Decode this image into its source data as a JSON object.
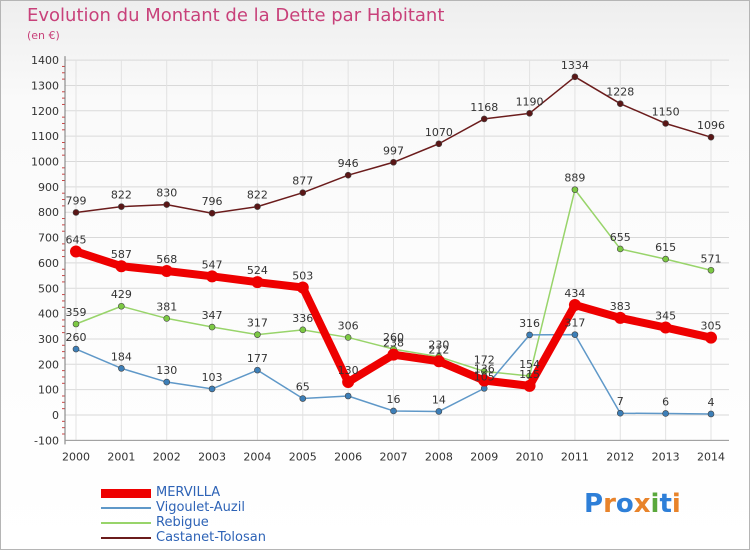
{
  "header": {
    "title": "Evolution du Montant de la Dette par Habitant",
    "subtitle": "(en €)"
  },
  "logo": {
    "text": "Proxiti",
    "letter_colors": [
      "#2e7fd8",
      "#e8832a",
      "#2e7fd8",
      "#e8832a",
      "#5aa83c",
      "#2e7fd8",
      "#e8832a"
    ]
  },
  "chart_data": {
    "type": "line",
    "title": "Evolution du Montant de la Dette par Habitant",
    "ylabel": "(en €)",
    "xlabel": "",
    "ylim": [
      -100,
      1400
    ],
    "yticks": [
      -100,
      0,
      100,
      200,
      300,
      400,
      500,
      600,
      700,
      800,
      900,
      1000,
      1100,
      1200,
      1300,
      1400
    ],
    "grid": true,
    "legend_position": "bottom-left",
    "x": [
      "2000",
      "2001",
      "2002",
      "2003",
      "2004",
      "2005",
      "2006",
      "2007",
      "2008",
      "2009",
      "2010",
      "2011",
      "2012",
      "2013",
      "2014"
    ],
    "series": [
      {
        "name": "Castanet-Tolosan",
        "color": "#6b1c1c",
        "marker": "#5a1616",
        "width": 1.5,
        "marker_r": 3,
        "values": [
          799,
          822,
          830,
          796,
          822,
          877,
          946,
          997,
          1070,
          1168,
          1190,
          1334,
          1228,
          1150,
          1096
        ]
      },
      {
        "name": "Rebigue",
        "color": "#98d46a",
        "marker": "#7cc943",
        "width": 1.5,
        "marker_r": 3,
        "values": [
          359,
          429,
          381,
          347,
          317,
          336,
          306,
          260,
          230,
          172,
          154,
          889,
          655,
          615,
          571
        ]
      },
      {
        "name": "Vigoulet-Auzil",
        "color": "#5f98c8",
        "marker": "#3d7fb8",
        "width": 1.5,
        "marker_r": 3,
        "values": [
          260,
          184,
          130,
          103,
          177,
          65,
          75,
          16,
          14,
          105,
          316,
          317,
          7,
          6,
          4
        ]
      },
      {
        "name": "MERVILLA",
        "color": "#ee0000",
        "marker": "#ee0000",
        "width": 8,
        "marker_r": 6,
        "values": [
          645,
          587,
          568,
          547,
          524,
          503,
          130,
          238,
          212,
          136,
          115,
          434,
          383,
          345,
          305
        ]
      }
    ],
    "data_labels": {
      "Castanet-Tolosan": [
        "799",
        "822",
        "830",
        "796",
        "822",
        "877",
        "946",
        "997",
        "1070",
        "1168",
        "1190",
        "1334",
        "1228",
        "1150",
        "1096"
      ],
      "Rebigue": [
        "359",
        "429",
        "381",
        "347",
        "317",
        "336",
        "306",
        "260",
        "230",
        "172",
        "154",
        "889",
        "655",
        "615",
        "571"
      ],
      "Vigoulet-Auzil": [
        "260",
        "184",
        "130",
        "103",
        "177",
        "65",
        "",
        "16",
        "14",
        "105",
        "316",
        "317",
        "7",
        "6",
        "4"
      ],
      "MERVILLA": [
        "645",
        "587",
        "568",
        "547",
        "524",
        "503",
        "130",
        "238",
        "212",
        "136",
        "115",
        "434",
        "383",
        "345",
        "305"
      ]
    },
    "legend_order": [
      "MERVILLA",
      "Vigoulet-Auzil",
      "Rebigue",
      "Castanet-Tolosan"
    ]
  }
}
